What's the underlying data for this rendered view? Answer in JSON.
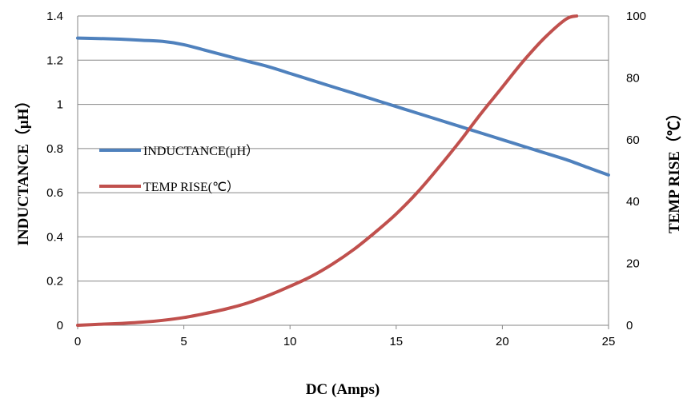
{
  "chart_data": {
    "type": "line",
    "xlabel": "DC (Amps)",
    "ylabel_left": "INDUCTANCE（μH）",
    "ylabel_right": "TEMP RISE（℃）",
    "xlim": [
      0,
      25
    ],
    "ylim_left": [
      0,
      1.4
    ],
    "ylim_right": [
      0,
      100
    ],
    "x_ticks": [
      "0",
      "5",
      "10",
      "15",
      "20",
      "25"
    ],
    "y_left_ticks": [
      "0",
      "0.2",
      "0.4",
      "0.6",
      "0.8",
      "1",
      "1.2",
      "1.4"
    ],
    "y_right_ticks": [
      "0",
      "20",
      "40",
      "60",
      "80",
      "100"
    ],
    "grid": "horizontal",
    "legend_position": "left-middle",
    "series": [
      {
        "name": "INDUCTANCE(μH）",
        "axis": "left",
        "color": "#4F81BD",
        "x": [
          0,
          1,
          2,
          3,
          4,
          5,
          6,
          7,
          8,
          9,
          10,
          11,
          12,
          13,
          14,
          15,
          16,
          17,
          18,
          19,
          20,
          21,
          22,
          23,
          24,
          25
        ],
        "y": [
          1.3,
          1.298,
          1.295,
          1.29,
          1.285,
          1.27,
          1.245,
          1.22,
          1.195,
          1.17,
          1.14,
          1.11,
          1.08,
          1.05,
          1.02,
          0.99,
          0.96,
          0.93,
          0.9,
          0.87,
          0.84,
          0.81,
          0.78,
          0.75,
          0.715,
          0.68
        ]
      },
      {
        "name": "TEMP RISE(℃）",
        "axis": "right",
        "color": "#C0504D",
        "x": [
          0,
          1,
          2,
          3,
          4,
          5,
          6,
          7,
          8,
          9,
          10,
          11,
          12,
          13,
          14,
          15,
          16,
          17,
          18,
          19,
          20,
          21,
          22,
          23,
          23.5
        ],
        "y": [
          0,
          0.3,
          0.6,
          1,
          1.6,
          2.5,
          3.8,
          5.3,
          7.2,
          9.7,
          12.6,
          15.8,
          19.8,
          24.5,
          30,
          36,
          43,
          51,
          59.5,
          68.5,
          77,
          85.5,
          93,
          99,
          100
        ]
      }
    ]
  }
}
